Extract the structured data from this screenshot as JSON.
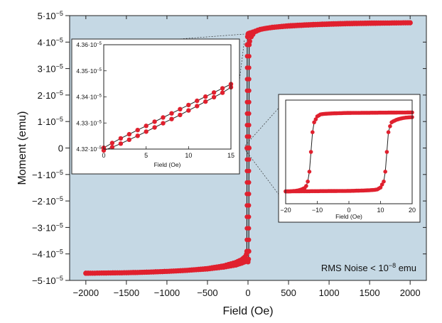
{
  "chart_data": [
    {
      "type": "scatter",
      "title": "",
      "xlabel": "Field (Oe)",
      "ylabel": "Moment (emu)",
      "xlim": [
        -2200,
        2200
      ],
      "ylim": [
        -5e-05,
        5e-05
      ],
      "xticks": [
        -2000,
        -1500,
        -1000,
        -500,
        0,
        500,
        1000,
        1500,
        2000
      ],
      "xtick_labels": [
        "−2000",
        "−1500",
        "−1000",
        "−500",
        "0",
        "500",
        "1000",
        "1500",
        "2000"
      ],
      "yticks": [
        -5e-05,
        -4e-05,
        -3e-05,
        -2e-05,
        -1e-05,
        0,
        1e-05,
        2e-05,
        3e-05,
        4e-05,
        5e-05
      ],
      "ytick_labels": [
        {
          "mant": "−5·10",
          "exp": "−5"
        },
        {
          "mant": "−4·10",
          "exp": "−5"
        },
        {
          "mant": "−3·10",
          "exp": "−5"
        },
        {
          "mant": "−2·10",
          "exp": "−5"
        },
        {
          "mant": "−1·10",
          "exp": "−5"
        },
        {
          "mant": "0",
          "exp": ""
        },
        {
          "mant": "1·10",
          "exp": "−5"
        },
        {
          "mant": "2·10",
          "exp": "−5"
        },
        {
          "mant": "3·10",
          "exp": "−5"
        },
        {
          "mant": "4·10",
          "exp": "−5"
        },
        {
          "mant": "5·10",
          "exp": "−5"
        }
      ],
      "grid": false,
      "background_color": "#c5d8e4",
      "marker_color": "#e0202e",
      "line_color": "#222222",
      "annotation": {
        "text": "RMS Noise < 10",
        "exp": "−8",
        "unit": " emu",
        "position": "bottom-right"
      },
      "series": [
        {
          "branch": "descending",
          "x": [
            2000,
            1800,
            1600,
            1400,
            1200,
            1000,
            800,
            600,
            400,
            300,
            200,
            120,
            60,
            30,
            15,
            5,
            0,
            -5,
            -10,
            -12,
            -14,
            -20,
            -40,
            -80,
            -150,
            -300,
            -500,
            -750,
            -1000,
            -1250,
            -1500,
            -1750,
            -2000
          ],
          "y": [
            4.73e-05,
            4.72e-05,
            4.71e-05,
            4.7e-05,
            4.69e-05,
            4.67e-05,
            4.65e-05,
            4.62e-05,
            4.58e-05,
            4.55e-05,
            4.51e-05,
            4.45e-05,
            4.38e-05,
            4.35e-05,
            4.334e-05,
            4.325e-05,
            4.3e-05,
            4.2e-05,
            3.9e-05,
            0,
            -3.9e-05,
            -4.02e-05,
            -4.12e-05,
            -4.22e-05,
            -4.32e-05,
            -4.45e-05,
            -4.55e-05,
            -4.62e-05,
            -4.66e-05,
            -4.69e-05,
            -4.71e-05,
            -4.72e-05,
            -4.73e-05
          ]
        },
        {
          "branch": "ascending",
          "x": [
            -2000,
            -1750,
            -1500,
            -1250,
            -1000,
            -750,
            -500,
            -300,
            -150,
            -80,
            -40,
            -20,
            -10,
            0,
            5,
            10,
            12,
            14,
            20,
            40,
            80,
            150,
            300,
            500,
            750,
            1000,
            1250,
            1500,
            1750,
            2000
          ],
          "y": [
            -4.73e-05,
            -4.72e-05,
            -4.71e-05,
            -4.69e-05,
            -4.66e-05,
            -4.62e-05,
            -4.57e-05,
            -4.5e-05,
            -4.42e-05,
            -4.35e-05,
            -4.3e-05,
            -4.25e-05,
            -4.2e-05,
            -4.3e-05,
            -4.2e-05,
            -3.9e-05,
            0,
            3.9e-05,
            4.03e-05,
            4.2e-05,
            4.38e-05,
            4.48e-05,
            4.56e-05,
            4.62e-05,
            4.66e-05,
            4.69e-05,
            4.71e-05,
            4.72e-05,
            4.725e-05,
            4.73e-05
          ]
        }
      ]
    },
    {
      "type": "scatter",
      "title": "",
      "xlabel": "Field (Oe)",
      "ylabel": "",
      "xlim": [
        0,
        15
      ],
      "ylim": [
        4.32e-05,
        4.36e-05
      ],
      "xticks": [
        0,
        5,
        10,
        15
      ],
      "xtick_labels": [
        "0",
        "5",
        "10",
        "15"
      ],
      "yticks": [
        4.32e-05,
        4.33e-05,
        4.34e-05,
        4.35e-05,
        4.36e-05
      ],
      "ytick_labels": [
        {
          "mant": "4.32·10",
          "exp": "−5"
        },
        {
          "mant": "4.33·10",
          "exp": "−5"
        },
        {
          "mant": "4.34·10",
          "exp": "−5"
        },
        {
          "mant": "4.35·10",
          "exp": "−5"
        },
        {
          "mant": "4.36·10",
          "exp": "−5"
        }
      ],
      "grid": false,
      "series": [
        {
          "x": [
            0,
            1,
            2,
            3,
            4,
            5,
            6,
            7,
            8,
            9,
            10,
            11,
            12,
            13,
            14,
            15
          ],
          "y": [
            4.3205e-05,
            4.3223e-05,
            4.3241e-05,
            4.3257e-05,
            4.3273e-05,
            4.3289e-05,
            4.3305e-05,
            4.3321e-05,
            4.3337e-05,
            4.3353e-05,
            4.3369e-05,
            4.3385e-05,
            4.3401e-05,
            4.3417e-05,
            4.3433e-05,
            4.3449e-05
          ]
        },
        {
          "x": [
            0,
            1,
            2,
            3,
            4,
            5,
            6,
            7,
            8,
            9,
            10,
            11,
            12,
            13,
            14,
            15
          ],
          "y": [
            4.3195e-05,
            4.3207e-05,
            4.3221e-05,
            4.3236e-05,
            4.3251e-05,
            4.3267e-05,
            4.3283e-05,
            4.3299e-05,
            4.3315e-05,
            4.3331e-05,
            4.3348e-05,
            4.3365e-05,
            4.3382e-05,
            4.3399e-05,
            4.3416e-05,
            4.3437e-05
          ]
        }
      ]
    },
    {
      "type": "scatter",
      "title": "",
      "xlabel": "Field (Oe)",
      "ylabel": "",
      "xlim": [
        -20,
        20
      ],
      "ylim": [
        -1.05,
        1.05
      ],
      "xticks": [
        -20,
        -10,
        0,
        10,
        20
      ],
      "xtick_labels": [
        "−20",
        "−10",
        "0",
        "10",
        "20"
      ],
      "yticks": [],
      "grid": false,
      "series": [
        {
          "branch": "descending",
          "x": [
            20,
            18,
            16,
            14,
            12,
            10,
            8,
            6,
            4,
            2,
            0,
            -2,
            -4,
            -6,
            -8,
            -9,
            -10,
            -11,
            -11.5,
            -12,
            -12.5,
            -13,
            -13.5,
            -14,
            -15,
            -16,
            -17,
            -18,
            -19,
            -20
          ],
          "y": [
            0.8,
            0.799,
            0.798,
            0.797,
            0.796,
            0.795,
            0.794,
            0.793,
            0.792,
            0.791,
            0.79,
            0.787,
            0.783,
            0.778,
            0.77,
            0.76,
            0.72,
            0.6,
            0.4,
            0.0,
            -0.4,
            -0.6,
            -0.69,
            -0.73,
            -0.76,
            -0.78,
            -0.79,
            -0.795,
            -0.8,
            -0.8
          ]
        },
        {
          "branch": "ascending",
          "x": [
            -20,
            -18,
            -16,
            -14,
            -12,
            -10,
            -8,
            -6,
            -4,
            -2,
            0,
            2,
            4,
            6,
            8,
            9,
            10,
            11,
            11.5,
            12,
            12.5,
            13,
            13.5,
            14,
            15,
            16,
            17,
            18,
            19,
            20
          ],
          "y": [
            -0.8,
            -0.799,
            -0.798,
            -0.797,
            -0.796,
            -0.795,
            -0.794,
            -0.793,
            -0.792,
            -0.791,
            -0.79,
            -0.787,
            -0.783,
            -0.778,
            -0.77,
            -0.76,
            -0.72,
            -0.6,
            -0.4,
            0.0,
            0.4,
            0.52,
            0.6,
            0.62,
            0.65,
            0.67,
            0.685,
            0.695,
            0.7,
            0.705
          ]
        }
      ]
    }
  ]
}
